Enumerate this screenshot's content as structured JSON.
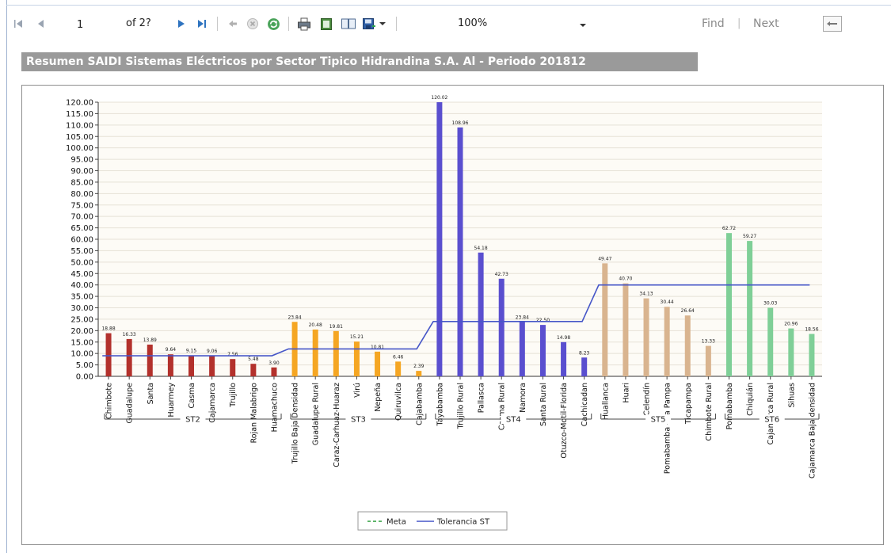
{
  "toolbar": {
    "page_current": "1",
    "page_of": "of 2?",
    "zoom": "100%",
    "find_label": "Find",
    "find_sep": "|",
    "next_label": "Next"
  },
  "report": {
    "title": "Resumen SAIDI Sistemas Eléctricos por Sector Tipico Hidrandina S.A. Al  - Periodo 201812"
  },
  "chart_data": {
    "type": "bar",
    "title": "",
    "ylim": [
      0,
      120
    ],
    "y_ticks": [
      "0.00",
      "5.00",
      "10.00",
      "15.00",
      "20.00",
      "25.00",
      "30.00",
      "35.00",
      "40.00",
      "45.00",
      "50.00",
      "55.00",
      "60.00",
      "65.00",
      "70.00",
      "75.00",
      "80.00",
      "85.00",
      "90.00",
      "95.00",
      "100.00",
      "105.00",
      "110.00",
      "115.00",
      "120.00"
    ],
    "grid": true,
    "legend_position": "bottom-center",
    "groups": [
      {
        "name": "ST2",
        "color": "#b3312c",
        "tolerance": 9,
        "categories": [
          "Chimbote",
          "Guadalupe",
          "Santa",
          "Huarmey",
          "Casma",
          "Cajamarca",
          "Trujillo",
          "Rojan Malabrigo",
          "Huamachuco"
        ],
        "values": [
          18.88,
          16.33,
          13.89,
          9.64,
          9.15,
          9.06,
          7.56,
          5.48,
          3.9
        ],
        "labels": [
          "18.88",
          "16.33",
          "13.89",
          "9.64",
          "9.15",
          "9.06",
          "7.56",
          "5.48",
          "3.90"
        ]
      },
      {
        "name": "ST3",
        "color": "#f5a623",
        "tolerance": 12,
        "categories": [
          "Trujillo Baja Densidad",
          "Guadalupe Rural",
          "Caraz-Carhuaz-Huaraz",
          "Virú",
          "Nepeña",
          "Quiruvilca",
          "Cajabamba"
        ],
        "values": [
          23.84,
          20.48,
          19.81,
          15.21,
          10.81,
          6.46,
          2.39
        ],
        "labels": [
          "23.84",
          "20.48",
          "19.81",
          "15.21",
          "10.81",
          "6.46",
          "2.39"
        ]
      },
      {
        "name": "ST4",
        "color": "#5a4fcf",
        "tolerance": 24,
        "categories": [
          "Tayabamba",
          "Trujillo Rural",
          "Pallasca",
          "Casma Rural",
          "Namora",
          "Santa Rural",
          "Otuzco-Motil-Florida",
          "Cachicadan"
        ],
        "values": [
          120.02,
          108.96,
          54.18,
          42.73,
          23.84,
          22.5,
          14.98,
          8.23
        ],
        "labels": [
          "120.02",
          "108.96",
          "54.18",
          "42.73",
          "23.84",
          "22.50",
          "14.98",
          "8.23"
        ]
      },
      {
        "name": "ST5",
        "color": "#d9b48f",
        "tolerance": 40,
        "categories": [
          "Huallanca",
          "Huari",
          "Celendín",
          "Pomabamba - La Pampa",
          "Ticapampa",
          "Chimbote Rural"
        ],
        "values": [
          49.47,
          40.7,
          34.13,
          30.44,
          26.64,
          13.33
        ],
        "labels": [
          "49.47",
          "40.70",
          "34.13",
          "30.44",
          "26.64",
          "13.33"
        ]
      },
      {
        "name": "ST6",
        "color": "#7fcf97",
        "tolerance": 40,
        "categories": [
          "Pomabamba",
          "Chiquián",
          "Cajamarca Rural",
          "Sihuas",
          "Cajamarca Baja densidad"
        ],
        "values": [
          62.72,
          59.27,
          30.03,
          20.96,
          18.56
        ],
        "labels": [
          "62.72",
          "59.27",
          "30.03",
          "20.96",
          "18.56"
        ]
      }
    ],
    "series_legend": [
      {
        "name": "Meta",
        "color": "#2a9d3a",
        "style": "dashed"
      },
      {
        "name": "Tolerancia ST",
        "color": "#4656c8",
        "style": "solid"
      }
    ]
  }
}
